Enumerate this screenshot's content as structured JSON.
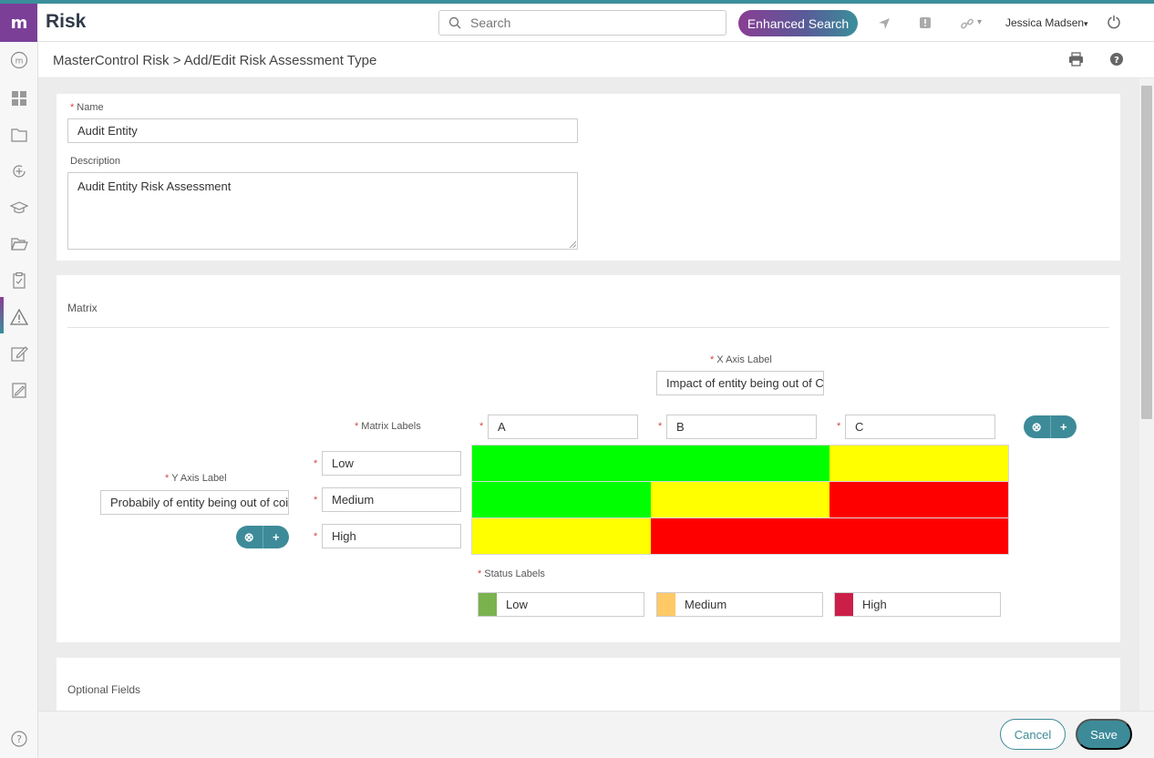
{
  "app": {
    "logo_text": "m",
    "title": "Risk"
  },
  "topbar": {
    "search_placeholder": "Search",
    "enhanced_search_label": "Enhanced Search",
    "user_name": "Jessica Madsen",
    "user_caret": "▾",
    "link_caret": "▾"
  },
  "breadcrumb": {
    "text": "MasterControl Risk > Add/Edit Risk Assessment Type"
  },
  "form": {
    "name_label": "Name",
    "name_value": "Audit Entity",
    "description_label": "Description",
    "description_value": "Audit Entity Risk Assessment",
    "required_marker": "*"
  },
  "matrix": {
    "section_title": "Matrix",
    "x_axis_label": "X Axis Label",
    "x_axis_value": "Impact of entity being out of C",
    "y_axis_label": "Y Axis Label",
    "y_axis_value": "Probabily of entity being out of coi",
    "matrix_labels_label": "Matrix Labels",
    "columns": [
      "A",
      "B",
      "C"
    ],
    "rows": [
      "Low",
      "Medium",
      "High"
    ],
    "cell_colors": [
      [
        "#00ff00",
        "#00ff00",
        "#ffff00"
      ],
      [
        "#00ff00",
        "#ffff00",
        "#ff0000"
      ],
      [
        "#ffff00",
        "#ff0000",
        "#ff0000"
      ]
    ],
    "remove_symbol": "⊗",
    "add_symbol": "+",
    "status_labels_label": "Status Labels",
    "status_labels": [
      {
        "label": "Low",
        "color": "#7ab24e"
      },
      {
        "label": "Medium",
        "color": "#ffc966"
      },
      {
        "label": "High",
        "color": "#cc1f47"
      }
    ]
  },
  "optional": {
    "section_title": "Optional Fields"
  },
  "footer": {
    "cancel_label": "Cancel",
    "save_label": "Save"
  }
}
